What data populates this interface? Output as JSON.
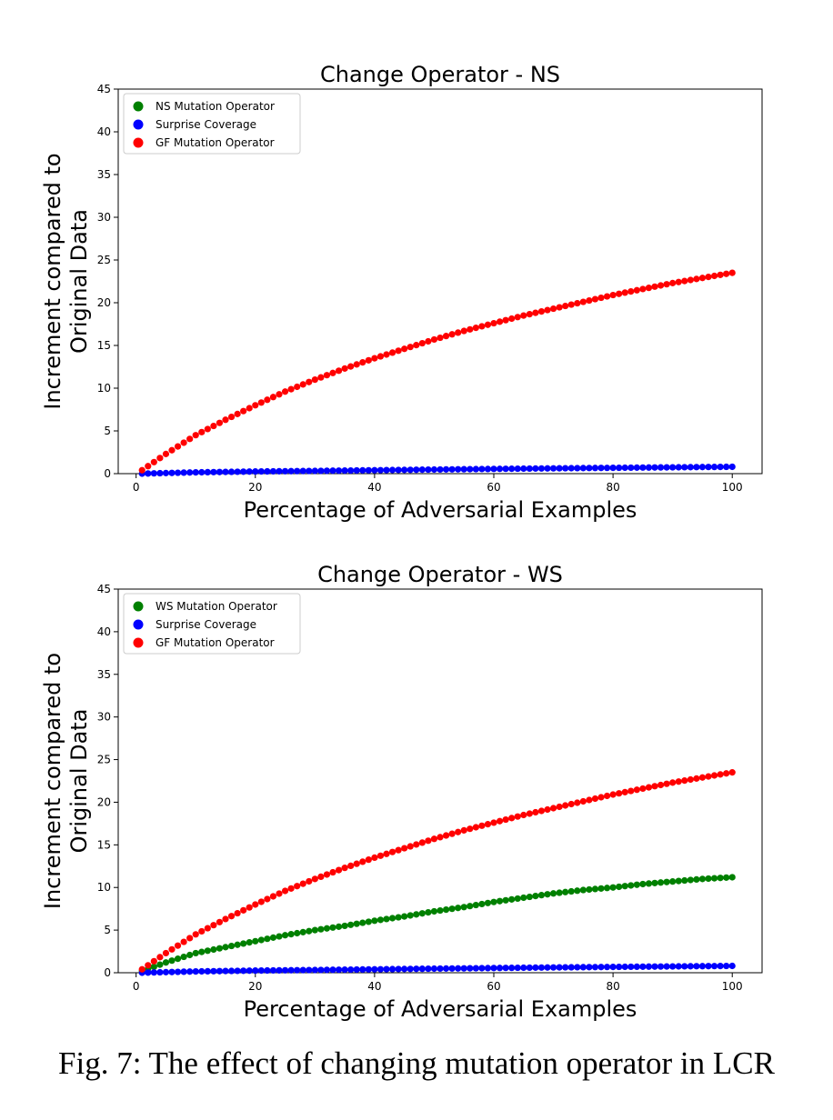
{
  "caption": "Fig. 7: The effect of changing mutation operator in LCR",
  "chart_data": [
    {
      "type": "scatter",
      "title": "Change Operator - NS",
      "xlabel": "Percentage of Adversarial Examples",
      "ylabel": "Increment compared to Original Data",
      "xlim": [
        -3,
        105
      ],
      "ylim": [
        0,
        45
      ],
      "xticks": [
        0,
        20,
        40,
        60,
        80,
        100
      ],
      "yticks": [
        0,
        5,
        10,
        15,
        20,
        25,
        30,
        35,
        40,
        45
      ],
      "grid": false,
      "legend": "top-left",
      "x_range": [
        1,
        100
      ],
      "series": [
        {
          "name": "NS Mutation Operator",
          "color": "#008000",
          "points": []
        },
        {
          "name": "Surprise Coverage",
          "color": "#0000ff",
          "points": [
            [
              1,
              0.0
            ],
            [
              10,
              0.15
            ],
            [
              20,
              0.25
            ],
            [
              30,
              0.32
            ],
            [
              40,
              0.4
            ],
            [
              50,
              0.48
            ],
            [
              60,
              0.55
            ],
            [
              70,
              0.62
            ],
            [
              80,
              0.68
            ],
            [
              90,
              0.74
            ],
            [
              100,
              0.8
            ]
          ]
        },
        {
          "name": "GF Mutation Operator",
          "color": "#ff0000",
          "points": [
            [
              1,
              0.4
            ],
            [
              5,
              2.3
            ],
            [
              10,
              4.5
            ],
            [
              15,
              6.3
            ],
            [
              20,
              8.0
            ],
            [
              25,
              9.6
            ],
            [
              30,
              11.0
            ],
            [
              35,
              12.3
            ],
            [
              40,
              13.5
            ],
            [
              45,
              14.6
            ],
            [
              50,
              15.7
            ],
            [
              55,
              16.7
            ],
            [
              60,
              17.6
            ],
            [
              65,
              18.5
            ],
            [
              70,
              19.3
            ],
            [
              75,
              20.1
            ],
            [
              80,
              20.9
            ],
            [
              85,
              21.6
            ],
            [
              90,
              22.3
            ],
            [
              95,
              22.9
            ],
            [
              100,
              23.5
            ]
          ]
        }
      ]
    },
    {
      "type": "scatter",
      "title": "Change Operator - WS",
      "xlabel": "Percentage of Adversarial Examples",
      "ylabel": "Increment compared to Original Data",
      "xlim": [
        -3,
        105
      ],
      "ylim": [
        0,
        45
      ],
      "xticks": [
        0,
        20,
        40,
        60,
        80,
        100
      ],
      "yticks": [
        0,
        5,
        10,
        15,
        20,
        25,
        30,
        35,
        40,
        45
      ],
      "grid": false,
      "legend": "top-left",
      "x_range": [
        1,
        100
      ],
      "series": [
        {
          "name": "WS Mutation Operator",
          "color": "#008000",
          "points": [
            [
              1,
              0.2
            ],
            [
              5,
              1.2
            ],
            [
              10,
              2.3
            ],
            [
              15,
              3.0
            ],
            [
              20,
              3.7
            ],
            [
              25,
              4.4
            ],
            [
              30,
              5.0
            ],
            [
              35,
              5.5
            ],
            [
              40,
              6.1
            ],
            [
              45,
              6.6
            ],
            [
              50,
              7.2
            ],
            [
              55,
              7.7
            ],
            [
              60,
              8.3
            ],
            [
              65,
              8.8
            ],
            [
              70,
              9.3
            ],
            [
              75,
              9.7
            ],
            [
              80,
              10.0
            ],
            [
              85,
              10.4
            ],
            [
              90,
              10.7
            ],
            [
              95,
              11.0
            ],
            [
              100,
              11.2
            ]
          ]
        },
        {
          "name": "Surprise Coverage",
          "color": "#0000ff",
          "points": [
            [
              1,
              0.0
            ],
            [
              10,
              0.15
            ],
            [
              20,
              0.25
            ],
            [
              30,
              0.32
            ],
            [
              40,
              0.4
            ],
            [
              50,
              0.48
            ],
            [
              60,
              0.55
            ],
            [
              70,
              0.62
            ],
            [
              80,
              0.68
            ],
            [
              90,
              0.74
            ],
            [
              100,
              0.8
            ]
          ]
        },
        {
          "name": "GF Mutation Operator",
          "color": "#ff0000",
          "points": [
            [
              1,
              0.4
            ],
            [
              5,
              2.3
            ],
            [
              10,
              4.5
            ],
            [
              15,
              6.3
            ],
            [
              20,
              8.0
            ],
            [
              25,
              9.6
            ],
            [
              30,
              11.0
            ],
            [
              35,
              12.3
            ],
            [
              40,
              13.5
            ],
            [
              45,
              14.6
            ],
            [
              50,
              15.7
            ],
            [
              55,
              16.7
            ],
            [
              60,
              17.6
            ],
            [
              65,
              18.5
            ],
            [
              70,
              19.3
            ],
            [
              75,
              20.1
            ],
            [
              80,
              20.9
            ],
            [
              85,
              21.6
            ],
            [
              90,
              22.3
            ],
            [
              95,
              22.9
            ],
            [
              100,
              23.5
            ]
          ]
        }
      ]
    }
  ]
}
